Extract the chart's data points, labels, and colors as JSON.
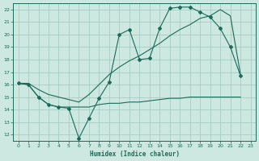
{
  "xlabel": "Humidex (Indice chaleur)",
  "bg_color": "#cce8e0",
  "grid_color": "#a0c8c0",
  "line_color": "#1a6b5a",
  "xlim": [
    -0.5,
    23.5
  ],
  "ylim": [
    11.5,
    22.5
  ],
  "xticks": [
    0,
    1,
    2,
    3,
    4,
    5,
    6,
    7,
    8,
    9,
    10,
    11,
    12,
    13,
    14,
    15,
    16,
    17,
    18,
    19,
    20,
    21,
    22,
    23
  ],
  "yticks": [
    12,
    13,
    14,
    15,
    16,
    17,
    18,
    19,
    20,
    21,
    22
  ],
  "line1_x": [
    0,
    1,
    2,
    3,
    4,
    5,
    6,
    7,
    8,
    9,
    10,
    11,
    12,
    13,
    14,
    15,
    16,
    17,
    18,
    19,
    20,
    21,
    22
  ],
  "line1_y": [
    16.1,
    16.0,
    15.0,
    14.4,
    14.2,
    14.1,
    11.7,
    13.3,
    14.9,
    16.2,
    20.0,
    20.4,
    18.0,
    18.1,
    20.5,
    22.1,
    22.2,
    22.2,
    21.8,
    21.4,
    20.5,
    19.0,
    16.7
  ],
  "line2_x": [
    0,
    1,
    2,
    3,
    4,
    5,
    6,
    7,
    8,
    9,
    10,
    11,
    12,
    13,
    14,
    15,
    16,
    17,
    18,
    19,
    20,
    21,
    22
  ],
  "line2_y": [
    16.1,
    16.0,
    15.0,
    14.4,
    14.2,
    14.2,
    14.2,
    14.2,
    14.4,
    14.5,
    14.5,
    14.6,
    14.6,
    14.7,
    14.8,
    14.9,
    14.9,
    15.0,
    15.0,
    15.0,
    15.0,
    15.0,
    15.0
  ],
  "line3_x": [
    0,
    1,
    2,
    3,
    4,
    5,
    6,
    7,
    8,
    9,
    10,
    11,
    12,
    13,
    14,
    15,
    16,
    17,
    18,
    19,
    20,
    21,
    22
  ],
  "line3_y": [
    16.1,
    16.1,
    15.6,
    15.2,
    15.0,
    14.8,
    14.6,
    15.2,
    16.0,
    16.8,
    17.4,
    17.9,
    18.3,
    18.8,
    19.3,
    19.9,
    20.4,
    20.8,
    21.3,
    21.5,
    22.0,
    21.5,
    16.8
  ]
}
